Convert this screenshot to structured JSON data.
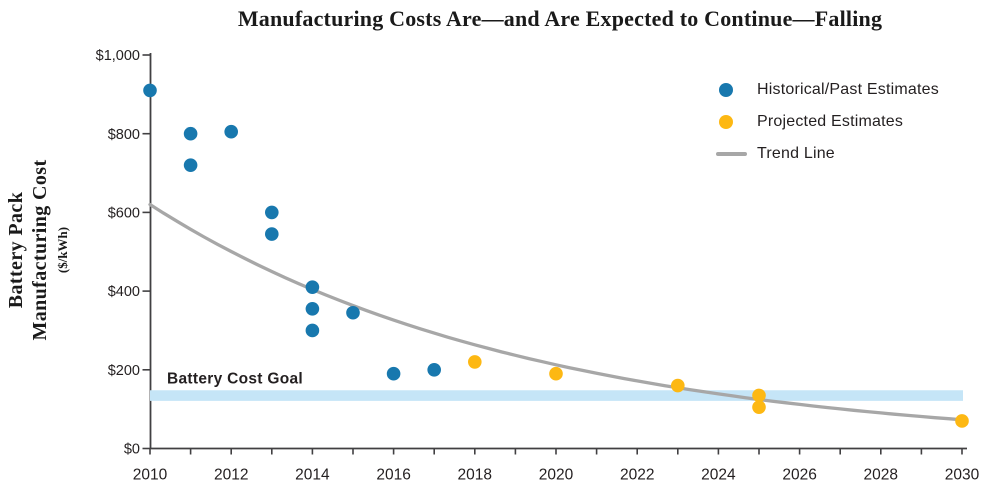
{
  "chart_data": {
    "type": "scatter",
    "title": "Manufacturing Costs Are—and Are Expected to Continue—Falling",
    "ylabel_lines": [
      "Battery Pack",
      "Manufacturing Cost"
    ],
    "ylabel_sub": "($/kWh)",
    "xlabel": "",
    "xlim": [
      2010,
      2030
    ],
    "ylim": [
      0,
      1000
    ],
    "grid": false,
    "legend_position": "top-right",
    "x_tick_labels": [
      "2010",
      "2012",
      "2014",
      "2016",
      "2018",
      "2020",
      "2022",
      "2024",
      "2026",
      "2028",
      "2030"
    ],
    "x_minor_tick_every_years": 1,
    "y_ticks": [
      {
        "value": 0,
        "label": "$0"
      },
      {
        "value": 200,
        "label": "$200"
      },
      {
        "value": 400,
        "label": "$400"
      },
      {
        "value": 600,
        "label": "$600"
      },
      {
        "value": 800,
        "label": "$800"
      },
      {
        "value": 1000,
        "label": "$1,000"
      }
    ],
    "series": [
      {
        "name": "Historical/Past Estimates",
        "color": "#1878ae",
        "points": [
          [
            2010,
            910
          ],
          [
            2011,
            800
          ],
          [
            2011,
            720
          ],
          [
            2012,
            805
          ],
          [
            2013,
            600
          ],
          [
            2013,
            545
          ],
          [
            2014,
            410
          ],
          [
            2014,
            355
          ],
          [
            2014,
            300
          ],
          [
            2015,
            345
          ],
          [
            2016,
            190
          ],
          [
            2017,
            200
          ]
        ]
      },
      {
        "name": "Projected Estimates",
        "color": "#fdb813",
        "points": [
          [
            2018,
            220
          ],
          [
            2020,
            190
          ],
          [
            2023,
            160
          ],
          [
            2025,
            135
          ],
          [
            2025,
            105
          ],
          [
            2030,
            70
          ]
        ]
      }
    ],
    "trend": {
      "name": "Trend Line",
      "color": "#a7a7a7",
      "model": "exponential",
      "start": [
        2010,
        620
      ],
      "end": [
        2030,
        73
      ]
    },
    "goal_band": {
      "label": "Battery Cost Goal",
      "value_from": 121,
      "value_to": 148,
      "color": "#c5e5f7"
    },
    "axis_color": "#414042"
  }
}
